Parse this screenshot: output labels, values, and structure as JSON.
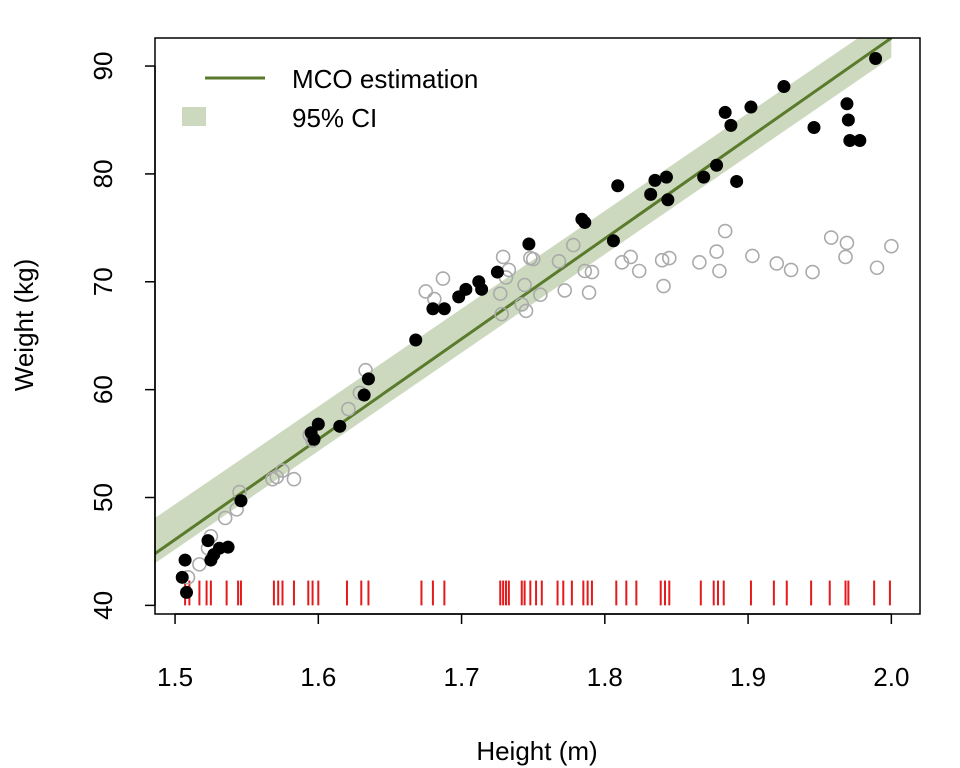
{
  "chart_data": {
    "type": "scatter",
    "xlabel": "Height (m)",
    "ylabel": "Weight (kg)",
    "xlim": [
      1.486,
      2.02
    ],
    "ylim": [
      39.2,
      92.6
    ],
    "xticks": [
      1.5,
      1.6,
      1.7,
      1.8,
      1.9,
      2.0
    ],
    "xtick_labels": [
      "1.5",
      "1.6",
      "1.7",
      "1.8",
      "1.9",
      "2.0"
    ],
    "yticks": [
      40,
      50,
      60,
      70,
      80,
      90
    ],
    "ytick_labels": [
      "40",
      "50",
      "60",
      "70",
      "80",
      "90"
    ],
    "legend": {
      "position": "top-left",
      "entries": [
        {
          "label": "MCO estimation",
          "kind": "line",
          "color": "#5a7a2c"
        },
        {
          "label": "95% CI",
          "kind": "fill",
          "color": "#ccd9bf"
        }
      ]
    },
    "colors": {
      "line": "#5a7a2c",
      "ci_band": "#ccd9bf",
      "filled_points": "#000000",
      "open_points": "#aaaaaa",
      "rug": "#e41a1c"
    },
    "fit": {
      "x": [
        1.486,
        2.0
      ],
      "y": [
        44.8,
        92.6
      ],
      "ci_lower": [
        43.9,
        90.8
      ],
      "ci_upper": [
        48.1,
        94.7
      ]
    },
    "series": [
      {
        "marker": "filled-circle",
        "x": [
          1.505,
          1.507,
          1.508,
          1.523,
          1.525,
          1.527,
          1.531,
          1.537,
          1.546,
          1.595,
          1.597,
          1.6,
          1.615,
          1.632,
          1.635,
          1.668,
          1.68,
          1.688,
          1.698,
          1.703,
          1.712,
          1.714,
          1.725,
          1.747,
          1.784,
          1.786,
          1.806,
          1.809,
          1.832,
          1.835,
          1.843,
          1.844,
          1.869,
          1.878,
          1.884,
          1.888,
          1.892,
          1.902,
          1.925,
          1.946,
          1.969,
          1.97,
          1.971,
          1.978,
          1.989
        ],
        "y": [
          42.6,
          44.2,
          41.2,
          46.0,
          44.2,
          44.7,
          45.3,
          45.4,
          49.7,
          56.0,
          55.4,
          56.8,
          56.6,
          59.5,
          61.0,
          64.6,
          67.5,
          67.5,
          68.6,
          69.3,
          70.0,
          69.3,
          70.9,
          73.5,
          75.8,
          75.5,
          73.8,
          78.9,
          78.1,
          79.4,
          79.7,
          77.6,
          79.7,
          80.8,
          85.7,
          84.5,
          79.3,
          86.2,
          88.1,
          84.3,
          86.5,
          85.0,
          83.1,
          83.1,
          90.7
        ]
      },
      {
        "marker": "open-circle",
        "x": [
          1.509,
          1.517,
          1.523,
          1.525,
          1.535,
          1.543,
          1.545,
          1.568,
          1.571,
          1.575,
          1.583,
          1.594,
          1.596,
          1.621,
          1.629,
          1.633,
          1.675,
          1.681,
          1.687,
          1.727,
          1.728,
          1.729,
          1.731,
          1.733,
          1.742,
          1.744,
          1.745,
          1.748,
          1.75,
          1.755,
          1.768,
          1.772,
          1.778,
          1.786,
          1.789,
          1.791,
          1.812,
          1.818,
          1.824,
          1.84,
          1.841,
          1.845,
          1.866,
          1.878,
          1.88,
          1.884,
          1.903,
          1.92,
          1.93,
          1.945,
          1.958,
          1.968,
          1.969,
          1.99,
          2.0
        ],
        "y": [
          42.6,
          43.8,
          45.3,
          46.4,
          48.1,
          48.9,
          50.5,
          51.7,
          51.9,
          52.5,
          51.7,
          55.8,
          55.3,
          58.2,
          59.7,
          61.8,
          69.1,
          68.4,
          70.3,
          68.9,
          67.0,
          72.3,
          70.4,
          71.1,
          67.9,
          69.7,
          67.3,
          72.2,
          72.1,
          68.8,
          71.9,
          69.2,
          73.4,
          71.0,
          69.0,
          70.9,
          71.8,
          72.3,
          71.0,
          72.0,
          69.6,
          72.2,
          71.8,
          72.8,
          71.0,
          74.7,
          72.4,
          71.7,
          71.1,
          70.9,
          74.1,
          72.3,
          73.6,
          71.3,
          73.3
        ]
      }
    ],
    "rug_x": [
      1.507,
      1.51,
      1.517,
      1.522,
      1.525,
      1.536,
      1.544,
      1.546,
      1.569,
      1.572,
      1.575,
      1.583,
      1.593,
      1.596,
      1.6,
      1.62,
      1.63,
      1.635,
      1.672,
      1.68,
      1.688,
      1.727,
      1.729,
      1.731,
      1.733,
      1.742,
      1.744,
      1.748,
      1.752,
      1.756,
      1.767,
      1.771,
      1.777,
      1.785,
      1.788,
      1.791,
      1.808,
      1.815,
      1.822,
      1.839,
      1.842,
      1.845,
      1.867,
      1.876,
      1.879,
      1.883,
      1.902,
      1.918,
      1.927,
      1.944,
      1.957,
      1.968,
      1.97,
      1.988,
      1.999
    ]
  }
}
